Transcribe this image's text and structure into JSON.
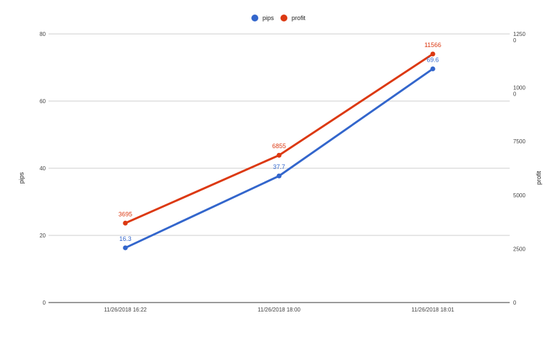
{
  "chart_data": {
    "type": "line",
    "categories": [
      "11/26/2018 16:22",
      "11/26/2018 18:00",
      "11/26/2018 18:01"
    ],
    "series": [
      {
        "name": "pips",
        "axis": "left",
        "color": "#3366cc",
        "values": [
          16.3,
          37.7,
          69.6
        ],
        "labels": [
          "16.3",
          "37.7",
          "69.6"
        ]
      },
      {
        "name": "profit",
        "axis": "right",
        "color": "#dc3912",
        "values": [
          3695,
          6855,
          11566
        ],
        "labels": [
          "3695",
          "6855",
          "11566"
        ]
      }
    ],
    "ylabel": "pips",
    "y2label": "profit",
    "ylim": [
      0,
      80
    ],
    "y2lim": [
      0,
      12500
    ],
    "yticks": [
      "0",
      "20",
      "40",
      "60",
      "80"
    ],
    "y2ticks": [
      "0",
      "2500",
      "5000",
      "7500",
      "1000\n0",
      "1250\n0"
    ],
    "grid": true,
    "legend": "top-center"
  }
}
